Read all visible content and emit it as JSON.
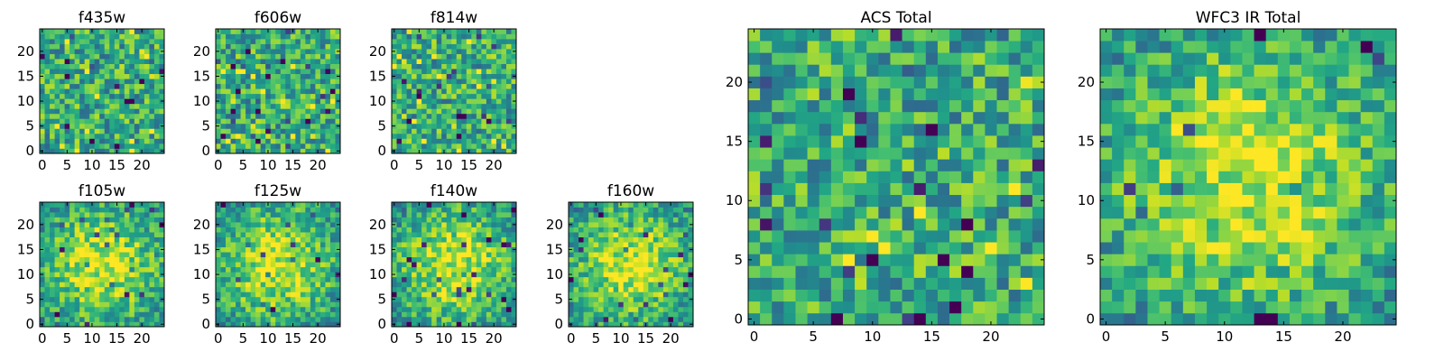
{
  "chart_data": [
    {
      "type": "heatmap",
      "title": "f435w",
      "xticks": [
        "0",
        "5",
        "10",
        "15",
        "20"
      ],
      "yticks": [
        "0",
        "5",
        "10",
        "15",
        "20"
      ],
      "grid_size": [
        25,
        25
      ],
      "colormap": "viridis",
      "pattern": "noise",
      "seed": 11
    },
    {
      "type": "heatmap",
      "title": "f606w",
      "xticks": [
        "0",
        "5",
        "10",
        "15",
        "20"
      ],
      "yticks": [
        "0",
        "5",
        "10",
        "15",
        "20"
      ],
      "grid_size": [
        25,
        25
      ],
      "colormap": "viridis",
      "pattern": "noise",
      "seed": 23
    },
    {
      "type": "heatmap",
      "title": "f814w",
      "xticks": [
        "0",
        "5",
        "10",
        "15",
        "20"
      ],
      "yticks": [
        "0",
        "5",
        "10",
        "15",
        "20"
      ],
      "grid_size": [
        25,
        25
      ],
      "colormap": "viridis",
      "pattern": "noise",
      "seed": 37
    },
    {
      "type": "heatmap",
      "title": "f105w",
      "xticks": [
        "0",
        "5",
        "10",
        "15",
        "20"
      ],
      "yticks": [
        "0",
        "5",
        "10",
        "15",
        "20"
      ],
      "grid_size": [
        25,
        25
      ],
      "colormap": "viridis",
      "pattern": "central-peak",
      "seed": 41
    },
    {
      "type": "heatmap",
      "title": "f125w",
      "xticks": [
        "0",
        "5",
        "10",
        "15",
        "20"
      ],
      "yticks": [
        "0",
        "5",
        "10",
        "15",
        "20"
      ],
      "grid_size": [
        25,
        25
      ],
      "colormap": "viridis",
      "pattern": "central-peak",
      "seed": 53
    },
    {
      "type": "heatmap",
      "title": "f140w",
      "xticks": [
        "0",
        "5",
        "10",
        "15",
        "20"
      ],
      "yticks": [
        "0",
        "5",
        "10",
        "15",
        "20"
      ],
      "grid_size": [
        25,
        25
      ],
      "colormap": "viridis",
      "pattern": "central-peak",
      "seed": 67
    },
    {
      "type": "heatmap",
      "title": "f160w",
      "xticks": [
        "0",
        "5",
        "10",
        "15",
        "20"
      ],
      "yticks": [
        "0",
        "5",
        "10",
        "15",
        "20"
      ],
      "grid_size": [
        25,
        25
      ],
      "colormap": "viridis",
      "pattern": "central-peak",
      "seed": 71
    },
    {
      "type": "heatmap",
      "title": "ACS Total",
      "xticks": [
        "0",
        "5",
        "10",
        "15",
        "20"
      ],
      "yticks": [
        "0",
        "5",
        "10",
        "15",
        "20"
      ],
      "grid_size": [
        25,
        25
      ],
      "colormap": "viridis",
      "pattern": "noise",
      "seed": 83
    },
    {
      "type": "heatmap",
      "title": "WFC3 IR Total",
      "xticks": [
        "0",
        "5",
        "10",
        "15",
        "20"
      ],
      "yticks": [
        "0",
        "5",
        "10",
        "15",
        "20"
      ],
      "grid_size": [
        25,
        25
      ],
      "colormap": "viridis",
      "pattern": "central-peak",
      "seed": 97
    }
  ]
}
